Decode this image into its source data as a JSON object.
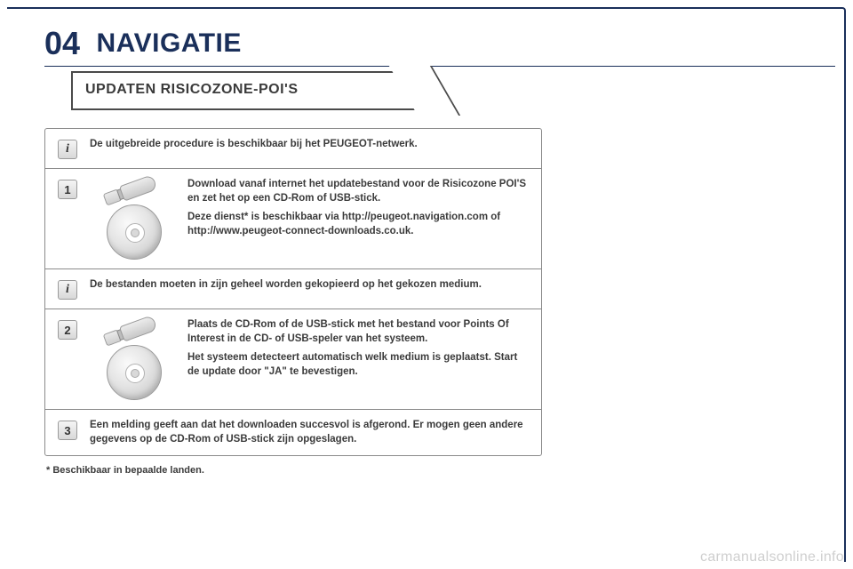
{
  "section_number": "04",
  "section_title": "NAVIGATIE",
  "subheader": "UPDATEN RISICOZONE-POI'S",
  "rows": {
    "info1": "De uitgebreide procedure is beschikbaar bij het PEUGEOT-netwerk.",
    "step1": {
      "p1": "Download vanaf internet het updatebestand voor de Risicozone POI'S en zet het op een CD-Rom of USB-stick.",
      "p2": "Deze dienst* is beschikbaar via http://peugeot.navigation.com of http://www.peugeot-connect-downloads.co.uk."
    },
    "info2": "De bestanden moeten in zijn geheel worden gekopieerd op het gekozen medium.",
    "step2": {
      "p1": "Plaats de CD-Rom of de USB-stick met het bestand voor Points Of Interest in de CD- of USB-speler van het systeem.",
      "p2": "Het systeem detecteert automatisch welk medium is geplaatst. Start de update door \"JA\" te bevestigen."
    },
    "step3": "Een melding geeft aan dat het downloaden succesvol is afgerond. Er mogen geen andere gegevens op de CD-Rom of USB-stick zijn opgeslagen."
  },
  "footnote": "* Beschikbaar in bepaalde landen.",
  "watermark": "carmanualsonline.info",
  "colors": {
    "accent": "#1a2f5a",
    "text": "#3b3b3b",
    "border": "#8a8a8a",
    "wm": "#cfcfcf"
  }
}
